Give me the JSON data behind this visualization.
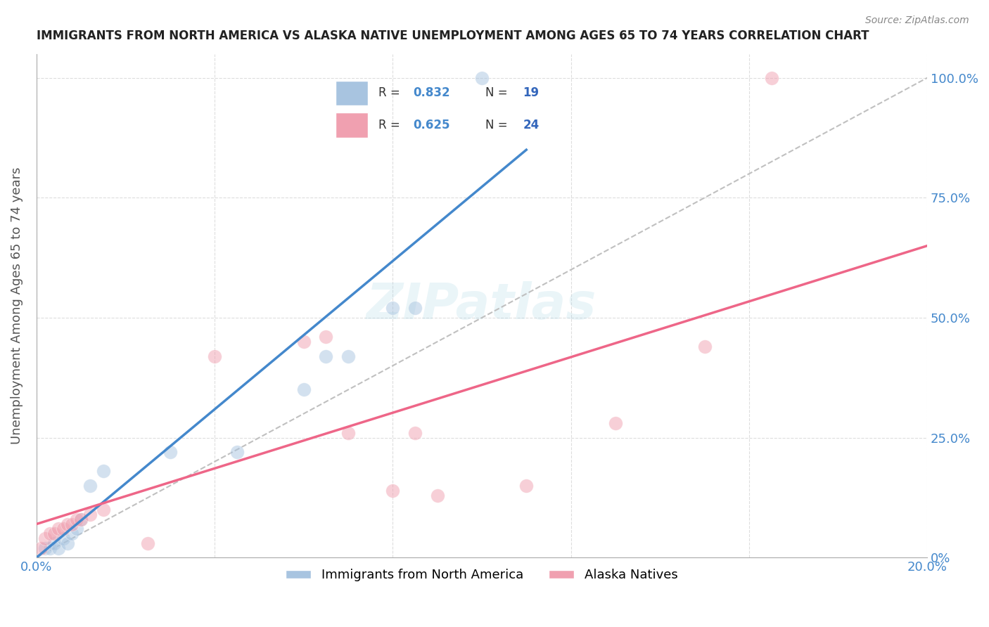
{
  "title": "IMMIGRANTS FROM NORTH AMERICA VS ALASKA NATIVE UNEMPLOYMENT AMONG AGES 65 TO 74 YEARS CORRELATION CHART",
  "source": "Source: ZipAtlas.com",
  "ylabel": "Unemployment Among Ages 65 to 74 years",
  "xlim": [
    0.0,
    0.2
  ],
  "ylim": [
    0.0,
    1.05
  ],
  "ytick_values": [
    0.0,
    0.25,
    0.5,
    0.75,
    1.0
  ],
  "ytick_labels": [
    "0%",
    "25.0%",
    "50.0%",
    "75.0%",
    "100.0%"
  ],
  "blue_R": "0.832",
  "blue_N": "19",
  "pink_R": "0.625",
  "pink_N": "24",
  "blue_color": "#a8c4e0",
  "pink_color": "#f0a0b0",
  "blue_line_color": "#4488cc",
  "pink_line_color": "#ee6688",
  "diagonal_color": "#c0c0c0",
  "watermark": "ZIPatlas",
  "blue_scatter_x": [
    0.002,
    0.003,
    0.004,
    0.005,
    0.006,
    0.007,
    0.008,
    0.009,
    0.01,
    0.012,
    0.015,
    0.03,
    0.045,
    0.06,
    0.065,
    0.07,
    0.08,
    0.085,
    0.1
  ],
  "blue_scatter_y": [
    0.02,
    0.02,
    0.03,
    0.02,
    0.04,
    0.03,
    0.05,
    0.06,
    0.08,
    0.15,
    0.18,
    0.22,
    0.22,
    0.35,
    0.42,
    0.42,
    0.52,
    0.52,
    1.0
  ],
  "pink_scatter_x": [
    0.001,
    0.002,
    0.003,
    0.004,
    0.005,
    0.006,
    0.007,
    0.008,
    0.009,
    0.01,
    0.012,
    0.015,
    0.025,
    0.04,
    0.06,
    0.065,
    0.07,
    0.08,
    0.085,
    0.09,
    0.11,
    0.13,
    0.15,
    0.165
  ],
  "pink_scatter_y": [
    0.02,
    0.04,
    0.05,
    0.05,
    0.06,
    0.06,
    0.07,
    0.07,
    0.08,
    0.08,
    0.09,
    0.1,
    0.03,
    0.42,
    0.45,
    0.46,
    0.26,
    0.14,
    0.26,
    0.13,
    0.15,
    0.28,
    0.44,
    1.0
  ],
  "blue_line_x": [
    0.0,
    0.11
  ],
  "blue_line_y": [
    0.0,
    0.85
  ],
  "pink_line_x": [
    0.0,
    0.2
  ],
  "pink_line_y": [
    0.07,
    0.65
  ],
  "dot_size": 200,
  "dot_alpha": 0.5,
  "background_color": "#ffffff",
  "grid_color": "#dddddd",
  "title_color": "#222222",
  "axis_label_color": "#555555",
  "tick_label_color_blue": "#4488cc",
  "tick_label_color_right": "#4488cc",
  "legend_R_color": "#4488cc",
  "legend_N_color": "#3366bb"
}
